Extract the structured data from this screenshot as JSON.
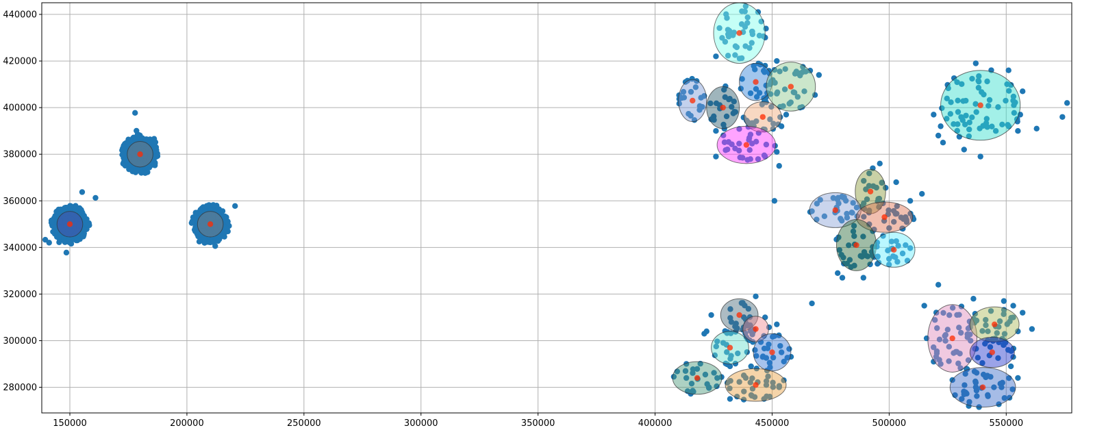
{
  "chart_data": {
    "type": "scatter",
    "title": "",
    "xlabel": "",
    "ylabel": "",
    "xlim": [
      138000,
      578000
    ],
    "ylim": [
      269000,
      445000
    ],
    "grid": true,
    "x_ticks": [
      150000,
      200000,
      250000,
      300000,
      350000,
      400000,
      450000,
      500000,
      550000
    ],
    "y_ticks": [
      280000,
      300000,
      320000,
      340000,
      360000,
      380000,
      400000,
      420000,
      440000
    ],
    "colors": {
      "points": "#1f77b4",
      "centroid": "#ff2a00",
      "grid": "#b0b0b0",
      "ellipse_edge": "#333333"
    },
    "dense_clusters": [
      {
        "cx": 150000,
        "cy": 350000,
        "spread_x": 7000,
        "spread_y": 7000,
        "n": 420
      },
      {
        "cx": 180000,
        "cy": 380000,
        "spread_x": 7000,
        "spread_y": 7000,
        "n": 420
      },
      {
        "cx": 210000,
        "cy": 350000,
        "spread_x": 7000,
        "spread_y": 7000,
        "n": 420
      }
    ],
    "clusters": [
      {
        "cx": 150000,
        "cy": 350000,
        "rx": 5500,
        "ry": 5500,
        "color": "#4b4ba8"
      },
      {
        "cx": 180000,
        "cy": 380000,
        "rx": 5500,
        "ry": 5500,
        "color": "#7c7c7c"
      },
      {
        "cx": 210000,
        "cy": 350000,
        "rx": 5500,
        "ry": 5500,
        "color": "#808080"
      },
      {
        "cx": 436000,
        "cy": 432000,
        "rx": 11000,
        "ry": 13000,
        "color": "#7fffea"
      },
      {
        "cx": 443000,
        "cy": 411000,
        "rx": 7000,
        "ry": 8000,
        "color": "#2f80d8"
      },
      {
        "cx": 458000,
        "cy": 409000,
        "rx": 10500,
        "ry": 10500,
        "color": "#8cc88c"
      },
      {
        "cx": 416000,
        "cy": 403000,
        "rx": 6000,
        "ry": 9000,
        "color": "#7a9ad6"
      },
      {
        "cx": 429000,
        "cy": 400000,
        "rx": 7000,
        "ry": 9000,
        "color": "#2a5a6a"
      },
      {
        "cx": 446000,
        "cy": 396000,
        "rx": 8000,
        "ry": 6500,
        "color": "#f0a878"
      },
      {
        "cx": 439000,
        "cy": 384000,
        "rx": 12500,
        "ry": 8000,
        "color": "#ff33ff"
      },
      {
        "cx": 539000,
        "cy": 401000,
        "rx": 17000,
        "ry": 15000,
        "color": "#33ddcc"
      },
      {
        "cx": 492000,
        "cy": 364000,
        "rx": 6500,
        "ry": 9500,
        "color": "#8a9a3a"
      },
      {
        "cx": 477000,
        "cy": 356000,
        "rx": 11000,
        "ry": 7500,
        "color": "#8aa2d6"
      },
      {
        "cx": 498000,
        "cy": 353000,
        "rx": 12000,
        "ry": 6500,
        "color": "#e07050"
      },
      {
        "cx": 486000,
        "cy": 341000,
        "rx": 8500,
        "ry": 11000,
        "color": "#2a6a3a"
      },
      {
        "cx": 502000,
        "cy": 339000,
        "rx": 9000,
        "ry": 7500,
        "color": "#66eeff"
      },
      {
        "cx": 436000,
        "cy": 311000,
        "rx": 8000,
        "ry": 7000,
        "color": "#4a6a7a"
      },
      {
        "cx": 443000,
        "cy": 305000,
        "rx": 5500,
        "ry": 5500,
        "color": "#f08a90"
      },
      {
        "cx": 432000,
        "cy": 297000,
        "rx": 8000,
        "ry": 7000,
        "color": "#66ddcc"
      },
      {
        "cx": 450000,
        "cy": 295000,
        "rx": 8000,
        "ry": 8000,
        "color": "#3a7ad8"
      },
      {
        "cx": 418000,
        "cy": 284000,
        "rx": 10500,
        "ry": 7000,
        "color": "#4a9a7a"
      },
      {
        "cx": 443000,
        "cy": 281000,
        "rx": 13000,
        "ry": 7000,
        "color": "#e8a040"
      },
      {
        "cx": 527000,
        "cy": 301000,
        "rx": 10500,
        "ry": 14500,
        "color": "#dd88bb"
      },
      {
        "cx": 545000,
        "cy": 307000,
        "rx": 10500,
        "ry": 7500,
        "color": "#aab858"
      },
      {
        "cx": 544000,
        "cy": 295000,
        "rx": 9500,
        "ry": 6500,
        "color": "#2233cc"
      },
      {
        "cx": 540000,
        "cy": 280000,
        "rx": 14000,
        "ry": 8500,
        "color": "#3a6ac8"
      }
    ],
    "outliers": [
      [
        444000,
        441000
      ],
      [
        426000,
        422000
      ],
      [
        447000,
        418000
      ],
      [
        452000,
        420000
      ],
      [
        470000,
        414000
      ],
      [
        452000,
        406000
      ],
      [
        462000,
        400000
      ],
      [
        456000,
        397000
      ],
      [
        454000,
        392000
      ],
      [
        426000,
        390000
      ],
      [
        452000,
        381000
      ],
      [
        453000,
        375000
      ],
      [
        426000,
        379000
      ],
      [
        447000,
        379000
      ],
      [
        413000,
        411000
      ],
      [
        421000,
        405000
      ],
      [
        419000,
        399000
      ],
      [
        424000,
        395000
      ],
      [
        519000,
        397000
      ],
      [
        522000,
        392000
      ],
      [
        521000,
        388000
      ],
      [
        523000,
        385000
      ],
      [
        532000,
        382000
      ],
      [
        539000,
        379000
      ],
      [
        555000,
        390000
      ],
      [
        556000,
        397000
      ],
      [
        563000,
        391000
      ],
      [
        574000,
        396000
      ],
      [
        576000,
        402000
      ],
      [
        557000,
        407000
      ],
      [
        551000,
        416000
      ],
      [
        537000,
        419000
      ],
      [
        496000,
        376000
      ],
      [
        493000,
        374000
      ],
      [
        503000,
        368000
      ],
      [
        514000,
        363000
      ],
      [
        509000,
        360000
      ],
      [
        451000,
        360000
      ],
      [
        489000,
        327000
      ],
      [
        480000,
        327000
      ],
      [
        478000,
        329000
      ],
      [
        495000,
        333000
      ],
      [
        495000,
        336000
      ],
      [
        507000,
        341000
      ],
      [
        493000,
        347000
      ],
      [
        502000,
        351000
      ],
      [
        507000,
        353000
      ],
      [
        469000,
        352000
      ],
      [
        484000,
        355000
      ],
      [
        443000,
        319000
      ],
      [
        467000,
        316000
      ],
      [
        447000,
        310000
      ],
      [
        452000,
        307000
      ],
      [
        451000,
        302000
      ],
      [
        454000,
        295000
      ],
      [
        446000,
        293000
      ],
      [
        455000,
        283000
      ],
      [
        453000,
        280000
      ],
      [
        449000,
        276000
      ],
      [
        432000,
        275000
      ],
      [
        435000,
        276000
      ],
      [
        422000,
        304000
      ],
      [
        424000,
        311000
      ],
      [
        421000,
        303000
      ],
      [
        441000,
        289000
      ],
      [
        432000,
        289000
      ],
      [
        413000,
        287000
      ],
      [
        423000,
        280000
      ],
      [
        521000,
        324000
      ],
      [
        515000,
        315000
      ],
      [
        536000,
        318000
      ],
      [
        549000,
        317000
      ],
      [
        553000,
        315000
      ],
      [
        557000,
        312000
      ],
      [
        555000,
        304000
      ],
      [
        561000,
        305000
      ],
      [
        516000,
        301000
      ],
      [
        519000,
        291000
      ],
      [
        522000,
        290000
      ],
      [
        553000,
        293000
      ],
      [
        552000,
        289000
      ],
      [
        555000,
        284000
      ],
      [
        548000,
        280000
      ],
      [
        537000,
        280000
      ],
      [
        532000,
        277000
      ],
      [
        531000,
        275000
      ],
      [
        534000,
        272000
      ],
      [
        537000,
        282000
      ],
      [
        533000,
        288000
      ]
    ]
  }
}
